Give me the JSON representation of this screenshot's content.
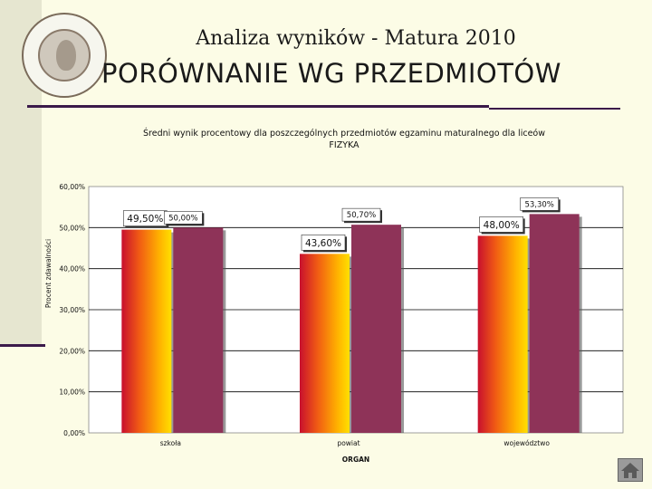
{
  "header": {
    "title": "Analiza wyników  - Matura 2010",
    "subtitle": "PORÓWNANIE WG PRZEDMIOTÓW"
  },
  "colors": {
    "page_bg": "#fcfce6",
    "accent_rule": "#3b1a4a",
    "series_maroon": "#8e3358"
  },
  "chart_data": {
    "type": "bar",
    "title": "Średni wynik procentowy dla poszczególnych przedmiotów egzaminu maturalnego dla liceów",
    "subtitle": "FIZYKA",
    "xlabel": "ORGAN",
    "ylabel": "Procent zdawalności",
    "ylim": [
      0,
      60
    ],
    "yticks": [
      "0,00%",
      "10,00%",
      "20,00%",
      "30,00%",
      "40,00%",
      "50,00%",
      "60,00%"
    ],
    "categories": [
      "szkoła",
      "powiat",
      "województwo"
    ],
    "series": [
      {
        "values": [
          49.5,
          43.6,
          48.0
        ],
        "labels": [
          "49,50%",
          "43,60%",
          "48,00%"
        ],
        "style": "gradient-orange"
      },
      {
        "values": [
          50.0,
          50.7,
          53.3
        ],
        "labels": [
          "50,00%",
          "50,70%",
          "53,30%"
        ],
        "style": "maroon"
      }
    ],
    "grid": true,
    "legend": "none"
  }
}
